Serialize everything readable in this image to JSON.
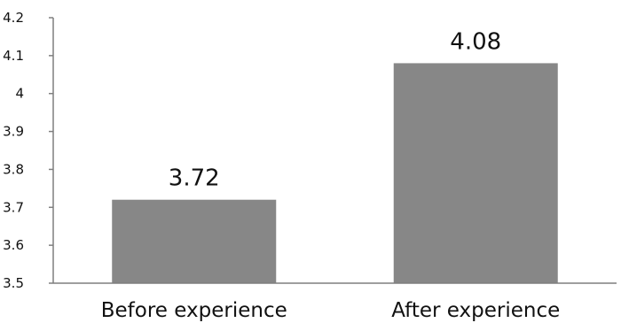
{
  "chart_data": {
    "type": "bar",
    "categories": [
      "Before experience",
      "After experience"
    ],
    "values": [
      3.72,
      4.08
    ],
    "data_labels": [
      "3.72",
      "4.08"
    ],
    "title": "",
    "xlabel": "",
    "ylabel": "",
    "ylim": [
      3.5,
      4.2
    ],
    "yticks": [
      3.5,
      3.6,
      3.7,
      3.8,
      3.9,
      4.0,
      4.1,
      4.2
    ],
    "ytick_labels": [
      "3.5",
      "3.6",
      "3.7",
      "3.8",
      "3.9",
      "4",
      "4.1",
      "4.2"
    ],
    "grid": false,
    "legend": "none",
    "colors": {
      "bar": "#878787",
      "axis": "#7f7f7f",
      "text": "#111111"
    }
  }
}
